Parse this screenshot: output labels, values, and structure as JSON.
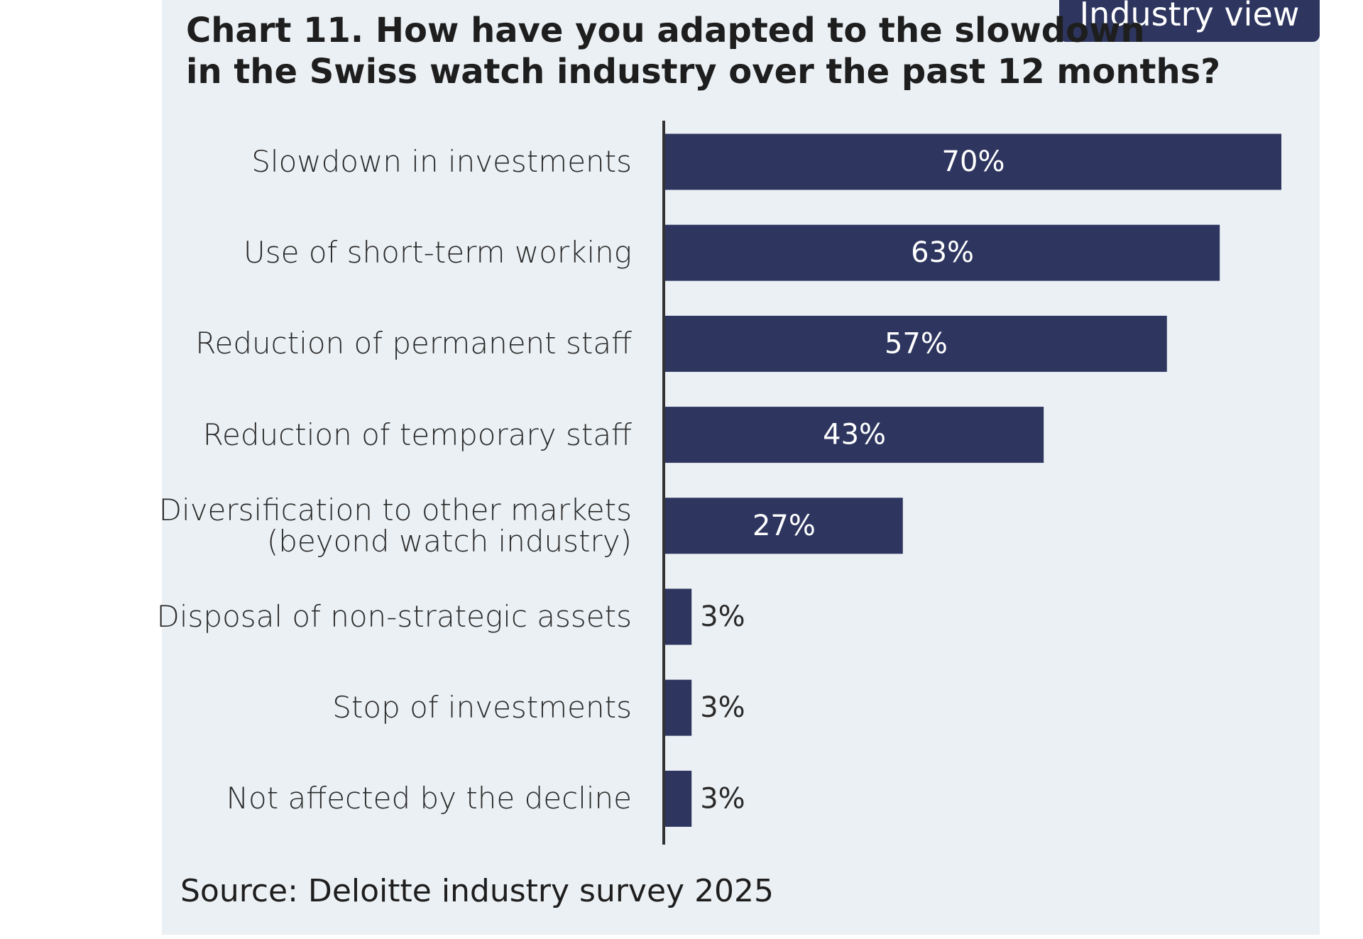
{
  "chart_data": {
    "type": "bar",
    "orientation": "horizontal",
    "badge": "Industry view",
    "title": "Chart  11. How have you adapted to the slowdown\nin the Swiss watch industry over the past 12 months?",
    "categories": [
      "Slowdown in investments",
      "Use of short-term working",
      "Reduction of permanent staff",
      "Reduction of temporary staff",
      "Diversification to other markets\n(beyond watch industry)",
      "Disposal of non-strategic assets",
      "Stop of investments",
      "Not affected by the decline"
    ],
    "values": [
      70,
      63,
      57,
      43,
      27,
      3,
      3,
      3
    ],
    "value_labels": [
      "70%",
      "63%",
      "57%",
      "43%",
      "27%",
      "3%",
      "3%",
      "3%"
    ],
    "color": "#2e3660",
    "source": "Source: Deloitte industry survey 2025"
  }
}
